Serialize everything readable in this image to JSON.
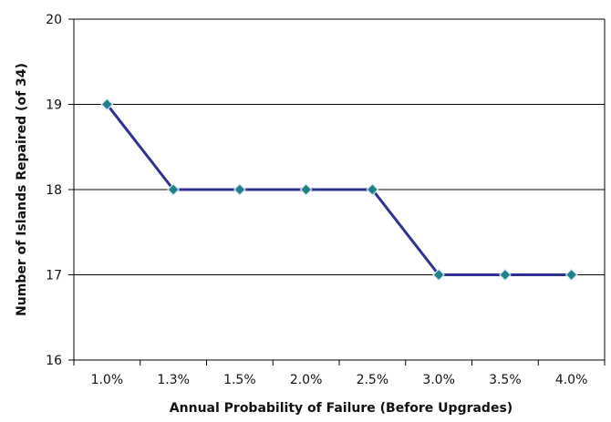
{
  "chart_data": {
    "type": "line",
    "title": "",
    "xlabel": "Annual Probability of Failure (Before Upgrades)",
    "ylabel": "Number of Islands Repaired (of 34)",
    "categories": [
      "1.0%",
      "1.3%",
      "1.5%",
      "2.0%",
      "2.5%",
      "3.0%",
      "3.5%",
      "4.0%"
    ],
    "series": [
      {
        "values": [
          19,
          18,
          18,
          18,
          18,
          17,
          17,
          17
        ]
      }
    ],
    "ylim": [
      16,
      20
    ],
    "yticks": [
      16,
      17,
      18,
      19,
      20
    ],
    "grid": "horizontal",
    "legend": "none",
    "colors": {
      "line": "#2e3192",
      "marker_fill": "#1f7f8c",
      "marker_edge": "#cfe8ec",
      "grid": "#000000",
      "axis": "#000000"
    }
  }
}
